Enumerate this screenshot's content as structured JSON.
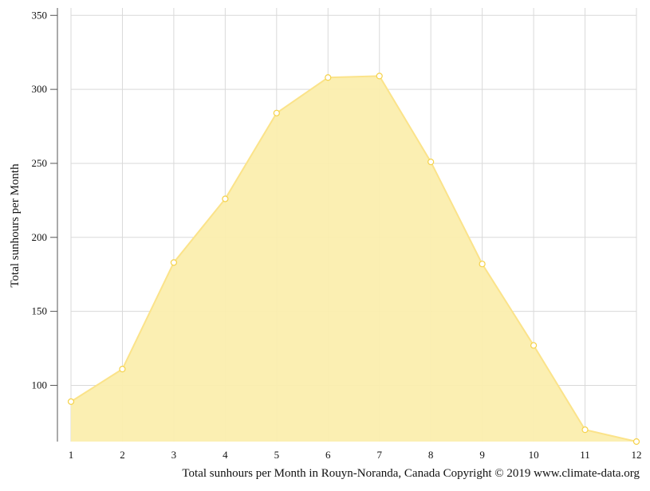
{
  "chart_data": {
    "type": "area",
    "title": "",
    "xlabel": "Total sunhours per Month in Rouyn-Noranda, Canada Copyright © 2019 www.climate-data.org",
    "ylabel": "Total sunhours per Month",
    "x": [
      1,
      2,
      3,
      4,
      5,
      6,
      7,
      8,
      9,
      10,
      11,
      12
    ],
    "series": [
      {
        "values": [
          89,
          111,
          183,
          226,
          284,
          308,
          309,
          251,
          182,
          127,
          70,
          62
        ]
      }
    ],
    "xlim": [
      1,
      12
    ],
    "ylim": [
      62,
      355
    ],
    "yticks": [
      100,
      150,
      200,
      250,
      300,
      350
    ],
    "grid": true,
    "colors": {
      "fill": "#fbeeae",
      "line": "#fbe38a",
      "marker_stroke": "#f5d24a",
      "marker_fill": "#ffffff",
      "grid": "#d9d9d9",
      "axis": "#555555"
    }
  }
}
